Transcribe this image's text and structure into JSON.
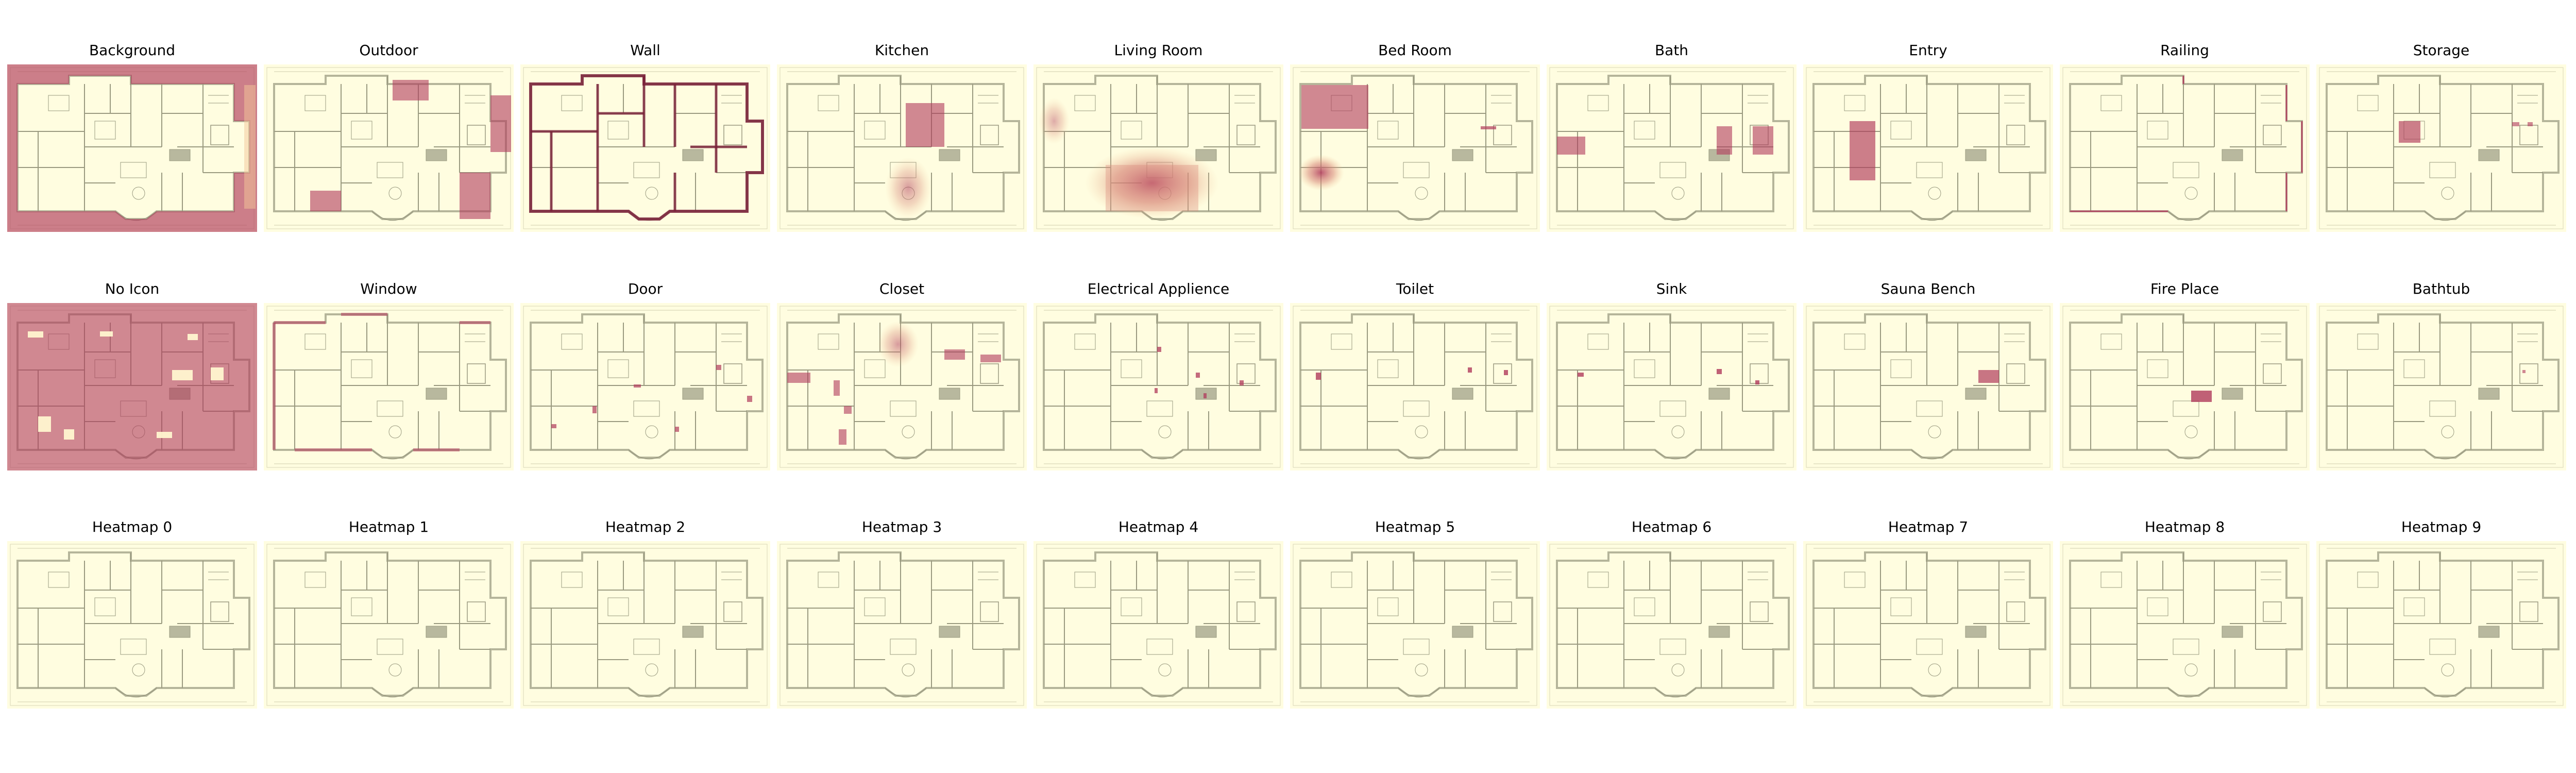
{
  "figure": {
    "rows": 3,
    "columns": 10,
    "panels": [
      {
        "title": "Background",
        "overlay": "background"
      },
      {
        "title": "Outdoor",
        "overlay": "outdoor"
      },
      {
        "title": "Wall",
        "overlay": "wall"
      },
      {
        "title": "Kitchen",
        "overlay": "kitchen"
      },
      {
        "title": "Living Room",
        "overlay": "living-room"
      },
      {
        "title": "Bed Room",
        "overlay": "bed-room"
      },
      {
        "title": "Bath",
        "overlay": "bath"
      },
      {
        "title": "Entry",
        "overlay": "entry"
      },
      {
        "title": "Railing",
        "overlay": "railing"
      },
      {
        "title": "Storage",
        "overlay": "storage"
      },
      {
        "title": "No Icon",
        "overlay": "no-icon"
      },
      {
        "title": "Window",
        "overlay": "window"
      },
      {
        "title": "Door",
        "overlay": "door"
      },
      {
        "title": "Closet",
        "overlay": "closet"
      },
      {
        "title": "Electrical Applience",
        "overlay": "electrical"
      },
      {
        "title": "Toilet",
        "overlay": "toilet"
      },
      {
        "title": "Sink",
        "overlay": "sink"
      },
      {
        "title": "Sauna Bench",
        "overlay": "sauna"
      },
      {
        "title": "Fire Place",
        "overlay": "fireplace"
      },
      {
        "title": "Bathtub",
        "overlay": "bathtub"
      },
      {
        "title": "Heatmap 0",
        "overlay": "none"
      },
      {
        "title": "Heatmap 1",
        "overlay": "none"
      },
      {
        "title": "Heatmap 2",
        "overlay": "none"
      },
      {
        "title": "Heatmap 3",
        "overlay": "none"
      },
      {
        "title": "Heatmap 4",
        "overlay": "none"
      },
      {
        "title": "Heatmap 5",
        "overlay": "none"
      },
      {
        "title": "Heatmap 6",
        "overlay": "none"
      },
      {
        "title": "Heatmap 7",
        "overlay": "none"
      },
      {
        "title": "Heatmap 8",
        "overlay": "none"
      },
      {
        "title": "Heatmap 9",
        "overlay": "none"
      }
    ],
    "colors": {
      "panel_bg": "#fffde0",
      "plan_line": "#9a9a80",
      "plan_wall": "#b5b59a",
      "heat_strong": "#b03a5b",
      "heat_mid": "#d98a7a",
      "heat_light": "#f3c89a",
      "title_text": "#000000"
    }
  }
}
